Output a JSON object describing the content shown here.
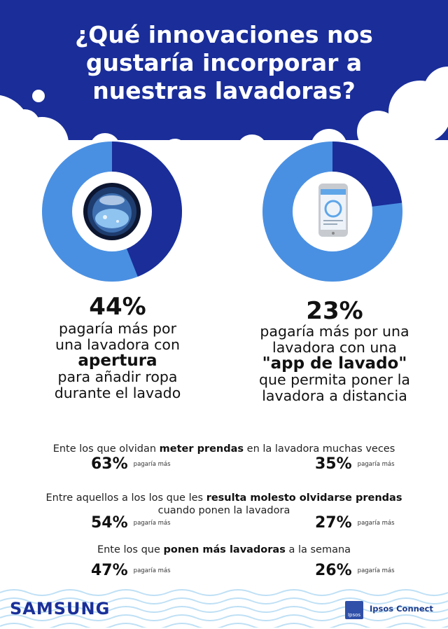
{
  "title": {
    "line1": "¿Qué innovaciones nos",
    "line2": "gustaría incorporar a",
    "line3": "nuestras lavadoras?"
  },
  "colors": {
    "dark_blue": "#1a2d99",
    "light_blue": "#4a90e2",
    "bg": "#ffffff"
  },
  "stats": [
    {
      "percent_label": "44%",
      "fraction": 0.44,
      "icon": "washing-machine-door-icon",
      "desc_line1": "pagaría más por",
      "desc_line2": "una lavadora con",
      "desc_bold": "apertura",
      "desc_line3": "para añadir ropa",
      "desc_line4": "durante el lavado"
    },
    {
      "percent_label": "23%",
      "fraction": 0.23,
      "icon": "smartphone-app-icon",
      "desc_line1": "pagaría más por una",
      "desc_line2": "lavadora con una",
      "desc_bold": "\"app de lavado\"",
      "desc_line3": "que permita poner la",
      "desc_line4": "lavadora a distancia"
    }
  ],
  "segments": [
    {
      "pre": "Ente los que olvidan ",
      "bold": "meter prendas",
      "post": "  en la lavadora muchas veces",
      "line2": "",
      "left_value": "63%",
      "right_value": "35%",
      "suffix": "pagaría más"
    },
    {
      "pre": "Entre aquellos a los los que les  ",
      "bold": "resulta molesto olvidarse prendas",
      "post": "",
      "line2": "cuando ponen la lavadora",
      "left_value": "54%",
      "right_value": "27%",
      "suffix": "pagaría más"
    },
    {
      "pre": "Ente los que ",
      "bold": "ponen más lavadoras",
      "post": "  a la semana",
      "line2": "",
      "left_value": "47%",
      "right_value": "26%",
      "suffix": "pagaría más"
    }
  ],
  "footer": {
    "brand": "SAMSUNG",
    "partner": "Ipsos Connect",
    "partner_logo_text": "Ipsos"
  }
}
